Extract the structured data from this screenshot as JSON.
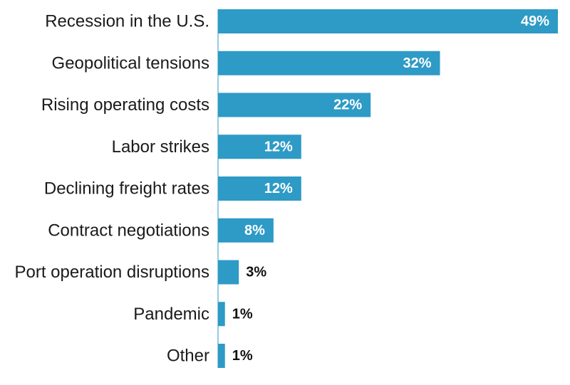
{
  "colors": {
    "bar": "#2e9ac6",
    "label_inside": "#ffffff",
    "label_outside": "#111111",
    "axis": "#1a1a1a"
  },
  "chart_data": {
    "type": "bar",
    "orientation": "horizontal",
    "title": "",
    "xlabel": "",
    "ylabel": "",
    "xlim": [
      0,
      49
    ],
    "grid": false,
    "legend": "none",
    "categories": [
      "Recession in the U.S.",
      "Geopolitical tensions",
      "Rising operating costs",
      "Labor strikes",
      "Declining freight rates",
      "Contract negotiations",
      "Port operation disruptions",
      "Pandemic",
      "Other"
    ],
    "values": [
      49,
      32,
      22,
      12,
      12,
      8,
      3,
      1,
      1
    ],
    "value_labels": [
      "49%",
      "32%",
      "22%",
      "12%",
      "12%",
      "8%",
      "3%",
      "1%",
      "1%"
    ]
  }
}
